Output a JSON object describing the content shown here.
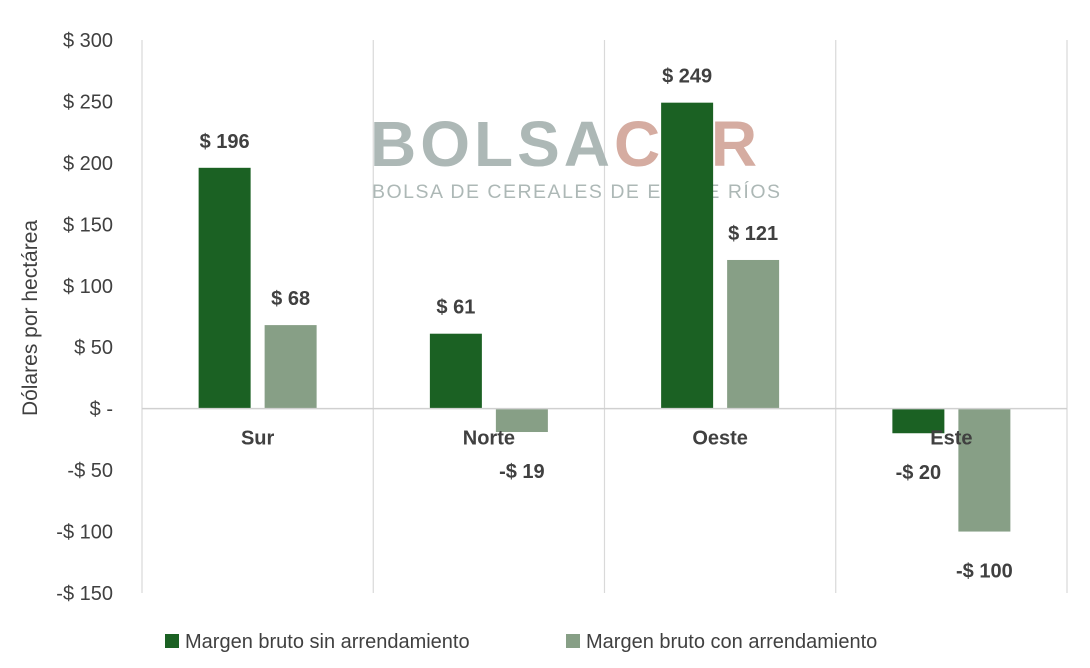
{
  "chart_data": {
    "type": "bar",
    "title": "",
    "ylabel": "Dólares por hectárea",
    "xlabel": "",
    "ylim": [
      -150,
      300
    ],
    "yticks": [
      300,
      250,
      200,
      150,
      100,
      50,
      0,
      -50,
      -100,
      -150
    ],
    "ytick_labels": [
      "$ 300",
      "$ 250",
      "$ 200",
      "$ 150",
      "$ 100",
      "$ 50",
      "$ -",
      "-$ 50",
      "-$ 100",
      "-$ 150"
    ],
    "categories": [
      "Sur",
      "Norte",
      "Oeste",
      "Este"
    ],
    "series": [
      {
        "name": "Margen bruto sin arrendamiento",
        "color": "#1b6123",
        "values": [
          196,
          61,
          249,
          -20
        ],
        "labels": [
          "$ 196",
          "$ 61",
          "$ 249",
          "-$ 20"
        ]
      },
      {
        "name": "Margen bruto con arrendamiento",
        "color": "#879f86",
        "values": [
          68,
          -19,
          121,
          -100
        ],
        "labels": [
          "$ 68",
          "-$ 19",
          "$ 121",
          "-$ 100"
        ]
      }
    ],
    "grid": "vertical-category-separators",
    "legend_position": "bottom",
    "watermark": {
      "text_part1": "BOLSA",
      "text_part2": "CER",
      "subtitle": "BOLSA DE CEREALES DE ENTRE RÍOS",
      "color1": "#a9b5b3",
      "color2": "#d3a89c"
    }
  }
}
